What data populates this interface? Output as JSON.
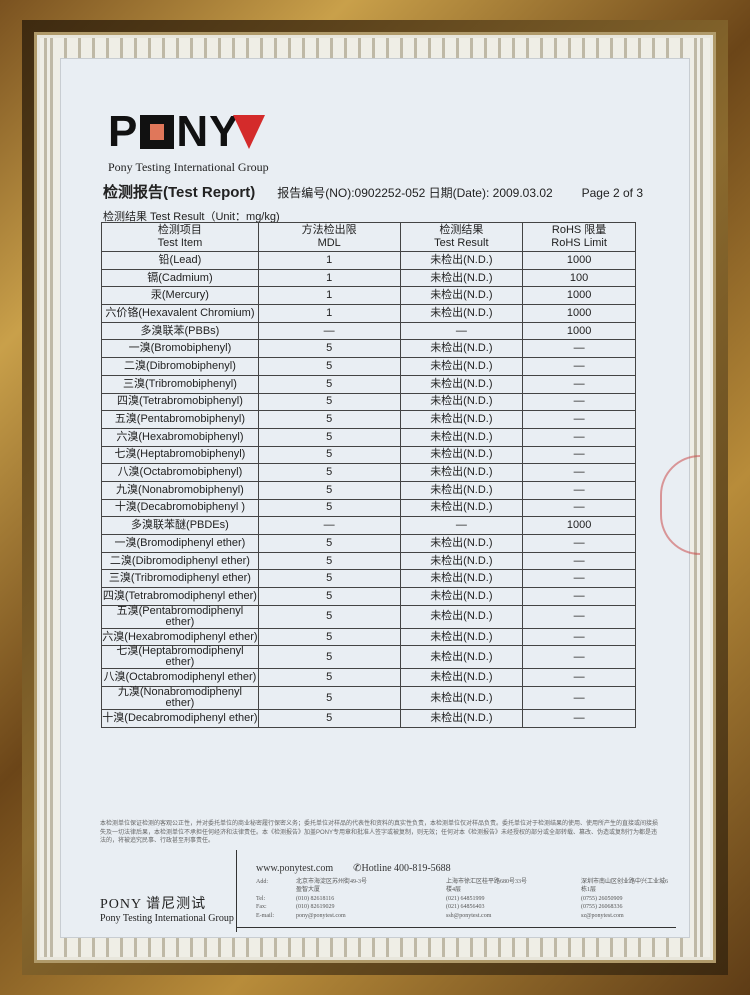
{
  "logo": {
    "text": "PONY",
    "subtitle": "Pony Testing International Group"
  },
  "header": {
    "title": "检测报告(Test Report)",
    "report_no": "报告编号(NO):0902252-052",
    "date": "日期(Date): 2009.03.02",
    "page": "Page 2 of 3"
  },
  "unit_label": "检测结果 Test Result（Unit：mg/kg)",
  "table": {
    "headers": [
      {
        "cn": "检测项目",
        "en": "Test Item"
      },
      {
        "cn": "方法检出限",
        "en": "MDL"
      },
      {
        "cn": "检测结果",
        "en": "Test Result"
      },
      {
        "cn": "RoHS 限量",
        "en": "RoHS Limit"
      }
    ],
    "rows": [
      [
        "铅(Lead)",
        "1",
        "未检出(N.D.)",
        "1000"
      ],
      [
        "镉(Cadmium)",
        "1",
        "未检出(N.D.)",
        "100"
      ],
      [
        "汞(Mercury)",
        "1",
        "未检出(N.D.)",
        "1000"
      ],
      [
        "六价铬(Hexavalent Chromium)",
        "1",
        "未检出(N.D.)",
        "1000"
      ],
      [
        "多溴联苯(PBBs)",
        "—",
        "—",
        "1000"
      ],
      [
        "一溴(Bromobiphenyl)",
        "5",
        "未检出(N.D.)",
        "—"
      ],
      [
        "二溴(Dibromobiphenyl)",
        "5",
        "未检出(N.D.)",
        "—"
      ],
      [
        "三溴(Tribromobiphenyl)",
        "5",
        "未检出(N.D.)",
        "—"
      ],
      [
        "四溴(Tetrabromobiphenyl)",
        "5",
        "未检出(N.D.)",
        "—"
      ],
      [
        "五溴(Pentabromobiphenyl)",
        "5",
        "未检出(N.D.)",
        "—"
      ],
      [
        "六溴(Hexabromobiphenyl)",
        "5",
        "未检出(N.D.)",
        "—"
      ],
      [
        "七溴(Heptabromobiphenyl)",
        "5",
        "未检出(N.D.)",
        "—"
      ],
      [
        "八溴(Octabromobiphenyl)",
        "5",
        "未检出(N.D.)",
        "—"
      ],
      [
        "九溴(Nonabromobiphenyl)",
        "5",
        "未检出(N.D.)",
        "—"
      ],
      [
        "十溴(Decabromobiphenyl )",
        "5",
        "未检出(N.D.)",
        "—"
      ],
      [
        "多溴联苯醚(PBDEs)",
        "—",
        "—",
        "1000"
      ],
      [
        "一溴(Bromodiphenyl ether)",
        "5",
        "未检出(N.D.)",
        "—"
      ],
      [
        "二溴(Dibromodiphenyl ether)",
        "5",
        "未检出(N.D.)",
        "—"
      ],
      [
        "三溴(Tribromodiphenyl ether)",
        "5",
        "未检出(N.D.)",
        "—"
      ],
      [
        "四溴(Tetrabromodiphenyl ether)",
        "5",
        "未检出(N.D.)",
        "—"
      ],
      [
        "五溴(Pentabromodiphenyl ether)",
        "5",
        "未检出(N.D.)",
        "—"
      ],
      [
        "六溴(Hexabromodiphenyl ether)",
        "5",
        "未检出(N.D.)",
        "—"
      ],
      [
        "七溴(Heptabromodiphenyl ether)",
        "5",
        "未检出(N.D.)",
        "—"
      ],
      [
        "八溴(Octabromodiphenyl ether)",
        "5",
        "未检出(N.D.)",
        "—"
      ],
      [
        "九溴(Nonabromodiphenyl ether)",
        "5",
        "未检出(N.D.)",
        "—"
      ],
      [
        "十溴(Decabromodiphenyl ether)",
        "5",
        "未检出(N.D.)",
        "—"
      ]
    ]
  },
  "disclaimer": "本检测单位保证检测的客观公正性，并对委托单位的商业秘密履行保密义务；委托单位对样品的代表性和资料的真实性负责，本检测单位仅对样品负责。委托单位对于检测结果的使用、使用所产生的直接或间接损失及一切法律后果，本检测单位不承担任何经济和法律责任。本《检测报告》加盖PONY专用章和批准人签字或被复制，则无效；任何对本《检测报告》未经授权的部分或全部转载、篡改、伪造或复制行为都是违法的，将被追究民事、行政甚至刑事责任。",
  "footer": {
    "brand": "PONY 谱尼测试",
    "brand_en": "Pony Testing International Group",
    "website": "www.ponytest.com",
    "hotline": "Hotline 400-819-5688",
    "labels": [
      "Add:",
      "",
      "Tel:",
      "Fax:",
      "E-mail:"
    ],
    "offices": [
      [
        "北京市海淀区苏州街49-3号",
        "盈智大厦",
        "(010) 82618116",
        "(010) 82619029",
        "pony@ponytest.com"
      ],
      [
        "上海市徐汇区桂平路680号33号",
        "楼4层",
        "(021) 64851999",
        "(021) 64856403",
        "ssh@ponytest.com"
      ],
      [
        "深圳市南山区创业路中兴工业城6",
        "栋1层",
        "(0755) 26050909",
        "(0755) 26068336",
        "sz@ponytest.com"
      ]
    ]
  },
  "colors": {
    "logo_red": "#d42b2b",
    "paper": "#e9eef3",
    "frame": "#8b6a2e"
  }
}
